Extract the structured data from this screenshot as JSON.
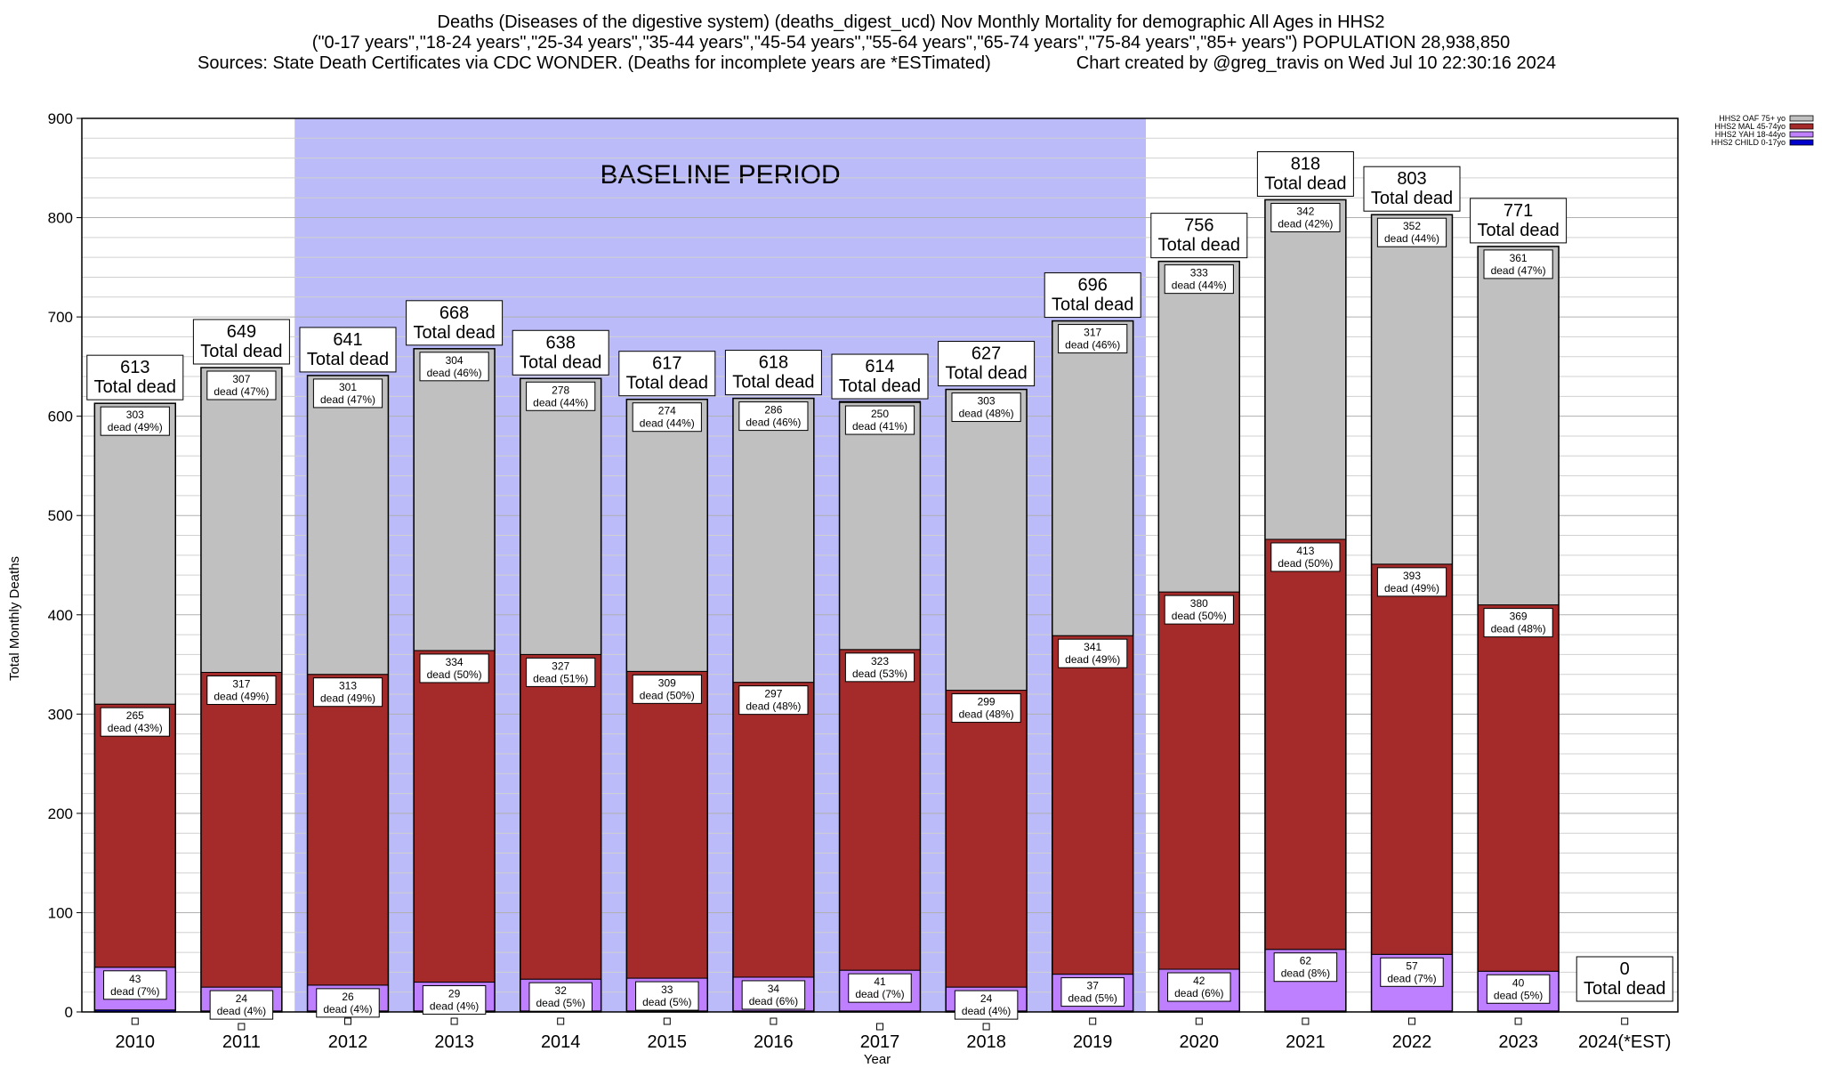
{
  "header": {
    "line1": "Deaths (Diseases of the digestive system) (deaths_digest_ucd) Nov Monthly Mortality for demographic All Ages in HHS2",
    "line2": "(\"0-17 years\",\"18-24 years\",\"25-34 years\",\"35-44 years\",\"45-54 years\",\"55-64 years\",\"65-74 years\",\"75-84 years\",\"85+ years\") POPULATION 28,938,850",
    "line3": "Sources: State Death Certificates via CDC WONDER. (Deaths for incomplete years are *ESTimated)",
    "credit": "Chart created by @greg_travis on Wed Jul 10 22:30:16 2024"
  },
  "chart_data": {
    "type": "bar",
    "stacked": true,
    "xlabel": "Year",
    "ylabel": "Total Monthly Deaths",
    "ylim": [
      0,
      900
    ],
    "yticks": [
      0,
      100,
      200,
      300,
      400,
      500,
      600,
      700,
      800,
      900
    ],
    "grid": true,
    "legend_position": "top-right",
    "categories": [
      "2010",
      "2011",
      "2012",
      "2013",
      "2014",
      "2015",
      "2016",
      "2017",
      "2018",
      "2019",
      "2020",
      "2021",
      "2022",
      "2023",
      "2024(*EST)"
    ],
    "annotation": {
      "text": "BASELINE PERIOD",
      "from_category": "2012",
      "to_category": "2019",
      "color": "#bbbbf9"
    },
    "series": [
      {
        "name": "HHS2 CHILD 0-17yo",
        "color": "#0000cc",
        "values": [
          2,
          1,
          1,
          1,
          1,
          1,
          1,
          1,
          1,
          1,
          1,
          1,
          1,
          1,
          0
        ],
        "labels": [
          "",
          "",
          "",
          "",
          "",
          "",
          "",
          "",
          "",
          "",
          "",
          "",
          "",
          "",
          ""
        ]
      },
      {
        "name": "HHS2 YAH 18-44yo",
        "color": "#bf80ff",
        "values": [
          43,
          24,
          26,
          29,
          32,
          33,
          34,
          41,
          24,
          37,
          42,
          62,
          57,
          40,
          0
        ],
        "labels": [
          "43\ndead (7%)",
          "24\ndead (4%)",
          "26\ndead (4%)",
          "29\ndead (4%)",
          "32\ndead (5%)",
          "33\ndead (5%)",
          "34\ndead (6%)",
          "41\ndead (7%)",
          "24\ndead (4%)",
          "37\ndead (5%)",
          "42\ndead (6%)",
          "62\ndead (8%)",
          "57\ndead (7%)",
          "40\ndead (5%)",
          ""
        ]
      },
      {
        "name": "HHS2 MAL 45-74yo",
        "color": "#a52a2a",
        "values": [
          265,
          317,
          313,
          334,
          327,
          309,
          297,
          323,
          299,
          341,
          380,
          413,
          393,
          369,
          0
        ],
        "labels": [
          "265\ndead (43%)",
          "317\ndead (49%)",
          "313\ndead (49%)",
          "334\ndead (50%)",
          "327\ndead (51%)",
          "309\ndead (50%)",
          "297\ndead (48%)",
          "323\ndead (53%)",
          "299\ndead (48%)",
          "341\ndead (49%)",
          "380\ndead (50%)",
          "413\ndead (50%)",
          "393\ndead (49%)",
          "369\ndead (48%)",
          ""
        ]
      },
      {
        "name": "HHS2 OAF 75+ yo",
        "color": "#c0c0c0",
        "values": [
          303,
          307,
          301,
          304,
          278,
          274,
          286,
          250,
          303,
          317,
          333,
          342,
          352,
          361,
          0
        ],
        "labels": [
          "303\ndead (49%)",
          "307\ndead (47%)",
          "301\ndead (47%)",
          "304\ndead (46%)",
          "278\ndead (44%)",
          "274\ndead (44%)",
          "286\ndead (46%)",
          "250\ndead (41%)",
          "303\ndead (48%)",
          "317\ndead (46%)",
          "333\ndead (44%)",
          "342\ndead (42%)",
          "352\ndead (44%)",
          "361\ndead (47%)",
          ""
        ]
      }
    ],
    "totals": [
      613,
      649,
      641,
      668,
      638,
      617,
      618,
      614,
      627,
      696,
      756,
      818,
      803,
      771,
      0
    ],
    "total_suffix": "Total dead"
  }
}
